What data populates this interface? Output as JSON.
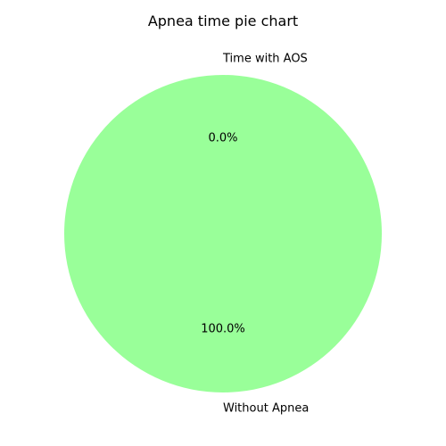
{
  "chart_data": {
    "type": "pie",
    "title": "Apnea time pie chart",
    "slices": [
      {
        "label": "Time with AOS",
        "value": 0.0,
        "pct_label": "0.0%",
        "color": "#ffffff"
      },
      {
        "label": "Without Apnea",
        "value": 100.0,
        "pct_label": "100.0%",
        "color": "#99ff99"
      }
    ],
    "legend": "none"
  }
}
